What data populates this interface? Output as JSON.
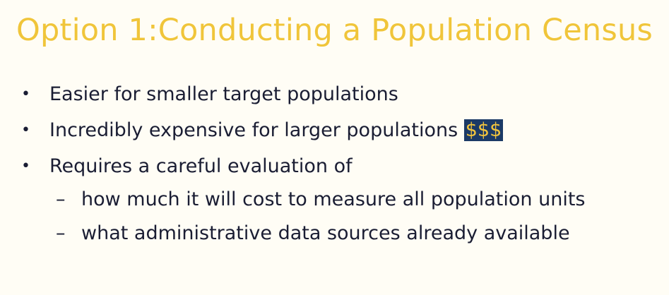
{
  "title": "Option 1:Conducting a Population Census",
  "bullets": [
    {
      "text": "Easier for smaller target populations"
    },
    {
      "text": "Incredibly expensive for larger populations",
      "highlight": "$$$"
    },
    {
      "text": "Requires a careful evaluation of"
    }
  ],
  "sub_bullets": [
    {
      "dash": "–",
      "text": "how much it will cost to measure all population units"
    },
    {
      "dash": "–",
      "text": "what administrative data sources already available"
    }
  ],
  "bullet_symbol": "•",
  "colors": {
    "title": "#f0c53a",
    "body_text": "#1a1d33",
    "highlight_bg": "#1c3a66",
    "highlight_text": "#f3c53d",
    "background": "#fffdf5"
  }
}
